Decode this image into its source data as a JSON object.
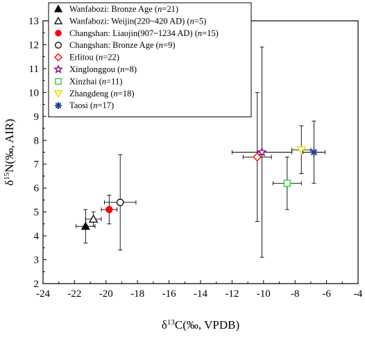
{
  "chart_data": {
    "type": "scatter",
    "xlabel": {
      "pre": "δ",
      "sup": "13",
      "post": "C(‰, VPDB)"
    },
    "ylabel": {
      "pre": "δ",
      "sup": "15",
      "post": "N(‰, AIR)"
    },
    "xlim": [
      -24,
      -4
    ],
    "ylim": [
      2,
      13
    ],
    "xticks": [
      -24,
      -22,
      -20,
      -18,
      -16,
      -14,
      -12,
      -10,
      -8,
      -6,
      -4
    ],
    "yticks": [
      2,
      3,
      4,
      5,
      6,
      7,
      8,
      9,
      10,
      11,
      12,
      13
    ],
    "grid": false,
    "legend_position": "top-left",
    "series": [
      {
        "name": "Wanfabozi: Bronze Age",
        "n": "21",
        "marker": "triangle-filled",
        "color": "#000000",
        "x": -21.3,
        "y": 4.4,
        "xerr": [
          0.6,
          0.6
        ],
        "yerr": [
          0.7,
          0.7
        ],
        "label": {
          "base": "Wanfabozi: Bronze Age (",
          "tail": "=21)"
        }
      },
      {
        "name": "Wanfabozi: Weijin(220~420 AD)",
        "n": "5",
        "marker": "triangle-open",
        "color": "#000000",
        "x": -20.8,
        "y": 4.7,
        "xerr": [
          0.5,
          0.5
        ],
        "yerr": [
          0.3,
          0.3
        ],
        "label": {
          "base": "Wanfabozi: Weijin(220~420 AD) (",
          "tail": "=5)"
        }
      },
      {
        "name": "Changshan: Liaojin(907~1234 AD)",
        "n": "15",
        "marker": "circle-filled",
        "color": "#ff0000",
        "x": -19.8,
        "y": 5.1,
        "xerr": [
          0.5,
          0.5
        ],
        "yerr": [
          0.6,
          0.6
        ],
        "label": {
          "base": "Changshan: Liaojin(907~1234 AD) (",
          "tail": "=15)"
        }
      },
      {
        "name": "Changshan: Bronze Age",
        "n": "9",
        "marker": "circle-open",
        "color": "#000000",
        "x": -19.1,
        "y": 5.4,
        "xerr": [
          1.0,
          1.0
        ],
        "yerr": [
          2.0,
          2.0
        ],
        "label": {
          "base": "Changshan: Bronze Age (",
          "tail": "=9)"
        }
      },
      {
        "name": "Erlitou",
        "n": "22",
        "marker": "diamond-open",
        "color": "#ff0000",
        "x": -10.4,
        "y": 7.3,
        "xerr": [
          0.9,
          0.9
        ],
        "yerr": [
          2.7,
          2.7
        ],
        "label": {
          "base": "Erlitou (",
          "tail": "=22)"
        }
      },
      {
        "name": "Xinglonggou",
        "n": "8",
        "marker": "star-open",
        "color": "#8b008b",
        "x": -10.1,
        "y": 7.5,
        "xerr": [
          1.9,
          1.9
        ],
        "yerr": [
          4.4,
          4.4
        ],
        "label": {
          "base": "Xinglonggou (",
          "tail": "=8)"
        }
      },
      {
        "name": "Xinzhai",
        "n": "11",
        "marker": "square-open",
        "color": "#33cc33",
        "x": -8.5,
        "y": 6.2,
        "xerr": [
          0.9,
          0.9
        ],
        "yerr": [
          1.1,
          1.1
        ],
        "label": {
          "base": "Xinzhai (",
          "tail": "=11)"
        }
      },
      {
        "name": "Zhangdeng",
        "n": "18",
        "marker": "triangle-down-open",
        "color": "#e6e600",
        "x": -7.6,
        "y": 7.6,
        "xerr": [
          0.6,
          0.6
        ],
        "yerr": [
          1.0,
          1.0
        ],
        "label": {
          "base": "Zhangdeng (",
          "tail": "=18)"
        }
      },
      {
        "name": "Taosi",
        "n": "17",
        "marker": "asterisk",
        "color": "#1f3f99",
        "x": -6.8,
        "y": 7.5,
        "xerr": [
          0.7,
          0.7
        ],
        "yerr": [
          1.3,
          1.3
        ],
        "label": {
          "base": "Taosi (",
          "tail": "=17)"
        }
      }
    ],
    "legend_n_letter": "n"
  }
}
